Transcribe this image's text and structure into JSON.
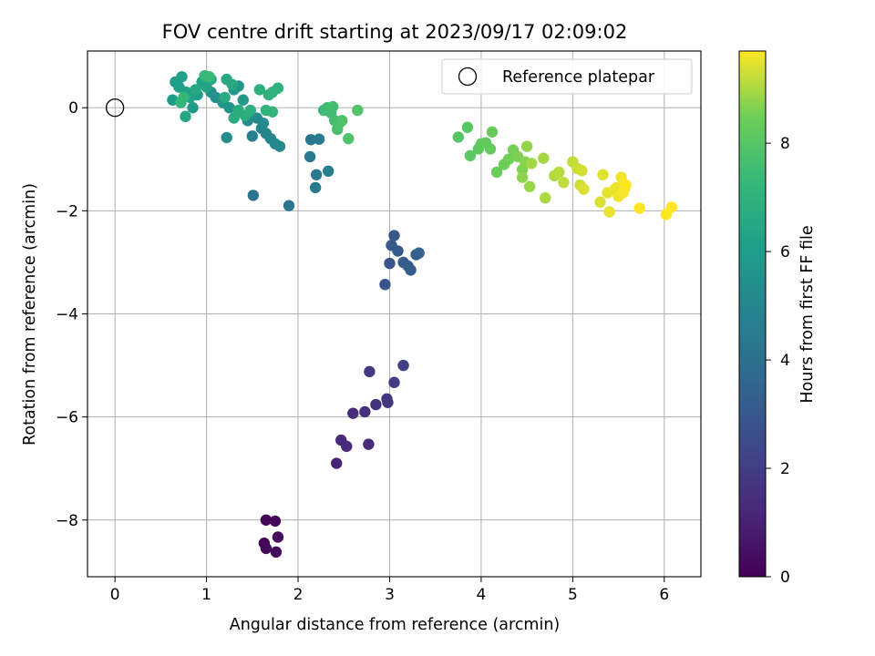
{
  "chart_data": {
    "type": "scatter",
    "title": "FOV centre drift starting at 2023/09/17 02:09:02",
    "xlabel": "Angular distance from reference (arcmin)",
    "ylabel": "Rotation from reference (arcmin)",
    "xlim": [
      -0.3,
      6.4
    ],
    "ylim": [
      -9.1,
      1.1
    ],
    "xticks": [
      0,
      1,
      2,
      3,
      4,
      5,
      6
    ],
    "yticks": [
      0,
      -2,
      -4,
      -6,
      -8
    ],
    "grid": true,
    "legend": {
      "placement": "top-right",
      "entries": [
        "Reference platepar"
      ]
    },
    "reference_point": {
      "x": 0.0,
      "y": 0.0
    },
    "colorbar": {
      "label": "Hours from first FF file",
      "colormap": "viridis",
      "range": [
        0,
        9.7
      ],
      "ticks": [
        0,
        2,
        4,
        6,
        8
      ]
    },
    "points": [
      [
        1.65,
        -8.0,
        0.1
      ],
      [
        1.75,
        -8.02,
        0.15
      ],
      [
        1.63,
        -8.45,
        0.2
      ],
      [
        1.65,
        -8.55,
        0.25
      ],
      [
        1.78,
        -8.33,
        0.3
      ],
      [
        1.76,
        -8.62,
        0.35
      ],
      [
        2.42,
        -6.9,
        1.1
      ],
      [
        2.47,
        -6.45,
        1.2
      ],
      [
        2.53,
        -6.57,
        1.3
      ],
      [
        2.77,
        -6.53,
        1.35
      ],
      [
        2.6,
        -5.93,
        1.45
      ],
      [
        2.73,
        -5.9,
        1.55
      ],
      [
        2.85,
        -5.76,
        1.65
      ],
      [
        2.97,
        -5.65,
        1.7
      ],
      [
        2.98,
        -5.72,
        1.8
      ],
      [
        2.78,
        -5.12,
        1.9
      ],
      [
        3.05,
        -5.33,
        2.0
      ],
      [
        3.15,
        -5.0,
        2.1
      ],
      [
        2.95,
        -3.43,
        2.8
      ],
      [
        3.0,
        -3.02,
        2.95
      ],
      [
        3.05,
        -2.48,
        3.0
      ],
      [
        3.02,
        -2.67,
        3.05
      ],
      [
        3.09,
        -2.78,
        3.1
      ],
      [
        3.15,
        -3.0,
        3.15
      ],
      [
        3.2,
        -3.07,
        3.2
      ],
      [
        3.23,
        -3.15,
        3.25
      ],
      [
        3.29,
        -2.85,
        3.3
      ],
      [
        3.32,
        -2.82,
        3.35
      ],
      [
        1.51,
        -1.7,
        4.2
      ],
      [
        1.9,
        -1.9,
        4.3
      ],
      [
        2.14,
        -0.62,
        4.35
      ],
      [
        2.13,
        -0.95,
        4.4
      ],
      [
        2.2,
        -1.3,
        4.45
      ],
      [
        2.19,
        -1.55,
        4.5
      ],
      [
        2.23,
        -0.61,
        4.55
      ],
      [
        2.33,
        -1.23,
        4.6
      ],
      [
        1.5,
        -0.55,
        4.8
      ],
      [
        1.6,
        -0.4,
        4.9
      ],
      [
        1.65,
        -0.5,
        5.0
      ],
      [
        1.7,
        -0.6,
        5.05
      ],
      [
        1.75,
        -0.7,
        5.1
      ],
      [
        1.8,
        -0.75,
        5.15
      ],
      [
        1.62,
        -0.3,
        5.2
      ],
      [
        1.55,
        -0.2,
        5.25
      ],
      [
        1.45,
        -0.25,
        5.3
      ],
      [
        1.22,
        -0.58,
        5.4
      ],
      [
        1.05,
        0.3,
        5.5
      ],
      [
        1.1,
        0.2,
        5.55
      ],
      [
        1.18,
        0.1,
        5.6
      ],
      [
        1.25,
        0.0,
        5.65
      ],
      [
        1.3,
        0.35,
        5.7
      ],
      [
        1.35,
        0.42,
        5.75
      ],
      [
        1.4,
        0.15,
        5.8
      ],
      [
        0.85,
        0.0,
        5.85
      ],
      [
        0.9,
        0.25,
        5.9
      ],
      [
        0.63,
        0.15,
        6.0
      ],
      [
        0.66,
        0.5,
        6.05
      ],
      [
        0.7,
        0.4,
        6.1
      ],
      [
        0.73,
        0.6,
        6.15
      ],
      [
        0.78,
        0.3,
        6.2
      ],
      [
        0.82,
        0.2,
        6.25
      ],
      [
        0.95,
        0.5,
        6.3
      ],
      [
        1.0,
        0.4,
        6.35
      ],
      [
        1.05,
        0.55,
        6.4
      ],
      [
        0.77,
        -0.17,
        6.45
      ],
      [
        0.88,
        0.35,
        6.5
      ],
      [
        1.22,
        0.55,
        6.55
      ],
      [
        1.28,
        0.45,
        6.6
      ],
      [
        1.2,
        0.2,
        6.65
      ],
      [
        1.3,
        -0.2,
        6.7
      ],
      [
        1.35,
        -0.05,
        6.75
      ],
      [
        1.42,
        -0.15,
        6.8
      ],
      [
        1.48,
        -0.05,
        6.85
      ],
      [
        1.58,
        0.35,
        6.9
      ],
      [
        1.68,
        0.25,
        6.95
      ],
      [
        1.72,
        0.3,
        7.0
      ],
      [
        1.78,
        0.38,
        7.05
      ],
      [
        1.65,
        -0.05,
        7.1
      ],
      [
        1.72,
        -0.08,
        7.15
      ],
      [
        0.72,
        0.1,
        7.2
      ],
      [
        0.75,
        0.2,
        7.25
      ],
      [
        0.98,
        0.62,
        7.3
      ],
      [
        1.03,
        0.6,
        7.35
      ],
      [
        2.28,
        -0.05,
        7.45
      ],
      [
        2.32,
        0.0,
        7.5
      ],
      [
        2.36,
        -0.1,
        7.55
      ],
      [
        2.38,
        0.02,
        7.6
      ],
      [
        2.4,
        -0.25,
        7.65
      ],
      [
        2.45,
        -0.3,
        7.7
      ],
      [
        2.43,
        -0.42,
        7.75
      ],
      [
        2.48,
        -0.25,
        7.8
      ],
      [
        2.55,
        -0.6,
        7.85
      ],
      [
        2.65,
        -0.05,
        7.9
      ],
      [
        3.75,
        -0.57,
        8.0
      ],
      [
        3.85,
        -0.38,
        8.05
      ],
      [
        3.88,
        -0.93,
        8.1
      ],
      [
        3.97,
        -0.8,
        8.15
      ],
      [
        4.0,
        -0.7,
        8.2
      ],
      [
        4.05,
        -0.68,
        8.25
      ],
      [
        4.1,
        -0.8,
        8.3
      ],
      [
        4.12,
        -0.47,
        8.35
      ],
      [
        4.17,
        -1.25,
        8.4
      ],
      [
        4.25,
        -1.1,
        8.45
      ],
      [
        4.3,
        -1.0,
        8.5
      ],
      [
        4.35,
        -0.82,
        8.55
      ],
      [
        4.4,
        -0.95,
        8.6
      ],
      [
        4.45,
        -1.2,
        8.65
      ],
      [
        4.48,
        -1.05,
        8.7
      ],
      [
        4.45,
        -1.35,
        8.75
      ],
      [
        4.5,
        -0.75,
        8.8
      ],
      [
        4.53,
        -1.53,
        8.85
      ],
      [
        4.55,
        -1.08,
        8.9
      ],
      [
        4.68,
        -0.98,
        8.95
      ],
      [
        4.7,
        -1.75,
        9.0
      ],
      [
        4.8,
        -1.32,
        9.05
      ],
      [
        4.85,
        -1.25,
        9.1
      ],
      [
        4.9,
        -1.45,
        9.15
      ],
      [
        5.0,
        -1.05,
        9.2
      ],
      [
        5.05,
        -1.18,
        9.25
      ],
      [
        5.08,
        -1.5,
        9.3
      ],
      [
        5.1,
        -1.22,
        9.35
      ],
      [
        5.12,
        -1.58,
        9.4
      ],
      [
        5.3,
        -1.83,
        9.4
      ],
      [
        5.33,
        -1.3,
        9.45
      ],
      [
        5.38,
        -1.65,
        9.5
      ],
      [
        5.4,
        -2.02,
        9.5
      ],
      [
        5.45,
        -1.6,
        9.55
      ],
      [
        5.48,
        -1.55,
        9.55
      ],
      [
        5.5,
        -1.72,
        9.6
      ],
      [
        5.53,
        -1.35,
        9.6
      ],
      [
        5.55,
        -1.65,
        9.65
      ],
      [
        5.57,
        -1.55,
        9.65
      ],
      [
        5.58,
        -1.5,
        9.7
      ],
      [
        5.73,
        -1.95,
        9.7
      ],
      [
        6.02,
        -2.07,
        9.7
      ],
      [
        6.08,
        -1.93,
        9.7
      ]
    ]
  }
}
